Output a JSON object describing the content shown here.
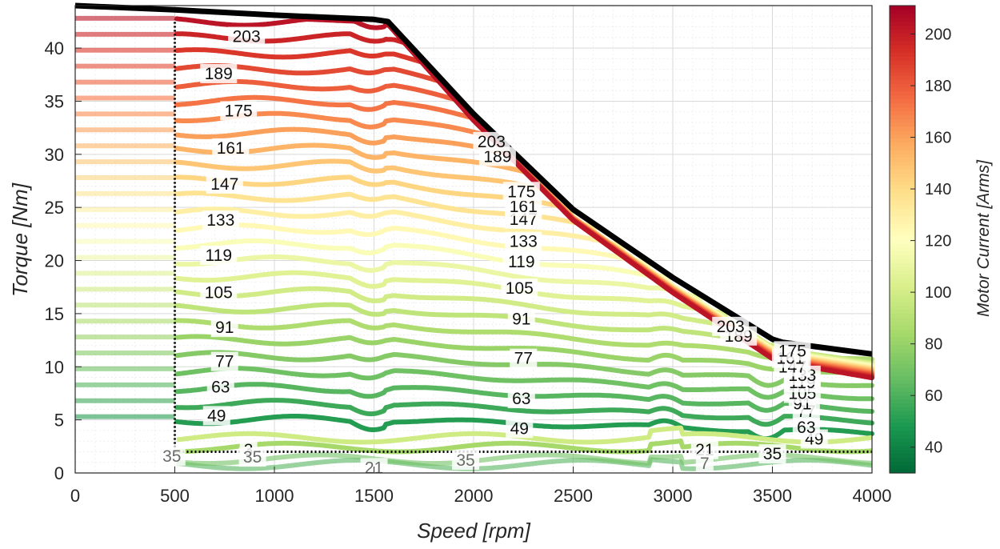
{
  "chart_data": {
    "type": "contour",
    "title": "",
    "xlabel": "Speed [rpm]",
    "ylabel": "Torque [Nm]",
    "xlim": [
      0,
      4000
    ],
    "ylim": [
      0,
      44
    ],
    "xticks": [
      0,
      500,
      1000,
      1500,
      2000,
      2500,
      3000,
      3500,
      4000
    ],
    "yticks": [
      0,
      5,
      10,
      15,
      20,
      25,
      30,
      35,
      40
    ],
    "xtick_labels": [
      "0",
      "500",
      "1000",
      "1500",
      "2000",
      "2500",
      "3000",
      "3500",
      "4000"
    ],
    "ytick_labels": [
      "0",
      "5",
      "10",
      "15",
      "20",
      "25",
      "30",
      "35",
      "40"
    ],
    "grid": true,
    "minor_grid": true,
    "colorbar": {
      "label": "Motor Current [Arms]",
      "limits": [
        30,
        211
      ],
      "ticks": [
        40,
        60,
        80,
        100,
        120,
        140,
        160,
        180,
        200
      ],
      "tick_labels": [
        "40",
        "60",
        "80",
        "100",
        "120",
        "140",
        "160",
        "180",
        "200"
      ],
      "colormap": "RdYlGn_r",
      "colormap_stops": [
        "#006837",
        "#1a9850",
        "#66bd63",
        "#a6d96a",
        "#d9ef8b",
        "#ffffbf",
        "#fee08b",
        "#fdae61",
        "#f46d43",
        "#d73027",
        "#a50026"
      ]
    },
    "max_torque_envelope": {
      "color": "#000000",
      "speed": [
        0,
        500,
        1000,
        1500,
        1570,
        2000,
        2500,
        3000,
        3500,
        3550,
        4000
      ],
      "torque": [
        44.0,
        43.6,
        43.1,
        42.7,
        42.5,
        33.8,
        24.8,
        18.4,
        12.6,
        12.3,
        11.2
      ]
    },
    "operating_boundaries": {
      "style": "dotted",
      "color": "#000000",
      "vertical_speed": 500,
      "vertical_torque_range": [
        2,
        42.7
      ],
      "horizontal_torque": 2,
      "horizontal_speed_range": [
        500,
        4000
      ]
    },
    "contour_levels": [
      7,
      21,
      35,
      49,
      63,
      77,
      91,
      105,
      119,
      133,
      147,
      161,
      175,
      189,
      203
    ],
    "contour_lines_constant_torque": [
      5,
      6.5,
      8,
      9.5,
      11,
      12.5,
      14,
      15.5,
      17,
      18.5,
      20,
      21.5,
      23,
      24.5,
      26,
      27.5,
      29,
      30.5,
      32,
      33.5,
      35,
      36.5,
      38,
      39.5,
      41,
      42.5
    ],
    "contour_labels": [
      {
        "text": "203",
        "speed": 860,
        "torque": 41.1
      },
      {
        "text": "189",
        "speed": 720,
        "torque": 37.6
      },
      {
        "text": "175",
        "speed": 820,
        "torque": 34.1
      },
      {
        "text": "161",
        "speed": 780,
        "torque": 30.6
      },
      {
        "text": "147",
        "speed": 750,
        "torque": 27.2
      },
      {
        "text": "133",
        "speed": 730,
        "torque": 23.8
      },
      {
        "text": "119",
        "speed": 720,
        "torque": 20.5
      },
      {
        "text": "105",
        "speed": 720,
        "torque": 17.0
      },
      {
        "text": "91",
        "speed": 750,
        "torque": 13.7
      },
      {
        "text": "77",
        "speed": 750,
        "torque": 10.5
      },
      {
        "text": "63",
        "speed": 730,
        "torque": 8.1
      },
      {
        "text": "49",
        "speed": 710,
        "torque": 5.4
      },
      {
        "text": "35",
        "speed": 485,
        "torque": 1.6,
        "faded": true
      },
      {
        "text": "3",
        "speed": 870,
        "torque": 2.2
      },
      {
        "text": "35",
        "speed": 890,
        "torque": 1.5,
        "faded": true
      },
      {
        "text": "21",
        "speed": 1500,
        "torque": 0.5,
        "faded": true
      },
      {
        "text": "35",
        "speed": 1960,
        "torque": 1.2,
        "faded": true
      },
      {
        "text": "91",
        "speed": 2240,
        "torque": 14.5
      },
      {
        "text": "105",
        "speed": 2230,
        "torque": 17.4
      },
      {
        "text": "119",
        "speed": 2240,
        "torque": 19.9
      },
      {
        "text": "133",
        "speed": 2250,
        "torque": 21.8
      },
      {
        "text": "147",
        "speed": 2250,
        "torque": 23.9
      },
      {
        "text": "161",
        "speed": 2250,
        "torque": 25.1
      },
      {
        "text": "175",
        "speed": 2240,
        "torque": 26.5
      },
      {
        "text": "189",
        "speed": 2120,
        "torque": 29.8
      },
      {
        "text": "203",
        "speed": 2090,
        "torque": 31.2
      },
      {
        "text": "77",
        "speed": 2250,
        "torque": 10.8
      },
      {
        "text": "63",
        "speed": 2240,
        "torque": 7.0
      },
      {
        "text": "49",
        "speed": 2230,
        "torque": 4.2
      },
      {
        "text": "21",
        "speed": 3160,
        "torque": 2.2
      },
      {
        "text": "7",
        "speed": 3160,
        "torque": 0.9,
        "faded": true
      },
      {
        "text": "35",
        "speed": 3500,
        "torque": 1.8
      },
      {
        "text": "49",
        "speed": 3710,
        "torque": 3.2
      },
      {
        "text": "63",
        "speed": 3670,
        "torque": 4.3
      },
      {
        "text": "77",
        "speed": 3670,
        "torque": 5.8
      },
      {
        "text": "91",
        "speed": 3650,
        "torque": 6.5
      },
      {
        "text": "105",
        "speed": 3650,
        "torque": 7.5
      },
      {
        "text": "119",
        "speed": 3650,
        "torque": 8.5
      },
      {
        "text": "133",
        "speed": 3650,
        "torque": 9.2
      },
      {
        "text": "147",
        "speed": 3600,
        "torque": 10.0
      },
      {
        "text": "161",
        "speed": 3590,
        "torque": 10.8
      },
      {
        "text": "175",
        "speed": 3600,
        "torque": 11.5
      },
      {
        "text": "189",
        "speed": 3330,
        "torque": 12.9
      },
      {
        "text": "203",
        "speed": 3290,
        "torque": 13.8
      }
    ]
  }
}
